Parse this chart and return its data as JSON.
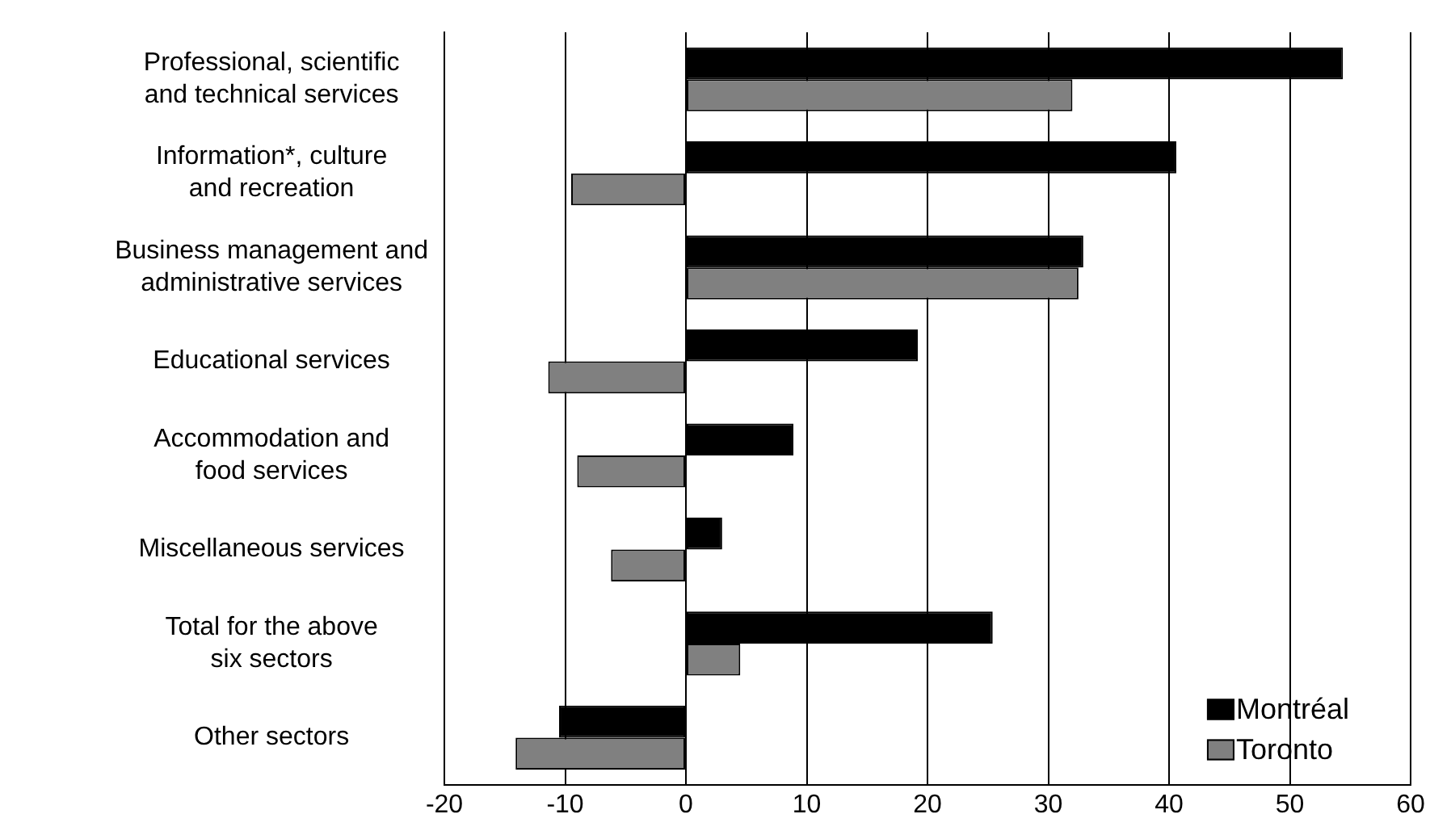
{
  "chart_data": {
    "type": "bar",
    "orientation": "horizontal",
    "categories": [
      "Professional, scientific\nand technical services",
      "Information*, culture\nand recreation",
      "Business management and\nadministrative services",
      "Educational services",
      "Accommodation and\nfood services",
      "Miscellaneous services",
      "Total for the above\nsix sectors",
      "Other sectors"
    ],
    "series": [
      {
        "name": "Montréal",
        "color": "#000000",
        "values": [
          54.4,
          40.6,
          32.9,
          19.2,
          8.9,
          3.0,
          25.4,
          -10.5
        ]
      },
      {
        "name": "Toronto",
        "color": "#808080",
        "values": [
          32.0,
          -9.5,
          32.5,
          -11.4,
          -9.0,
          -6.2,
          4.5,
          -14.1
        ]
      }
    ],
    "xlim": [
      -20,
      60
    ],
    "xticks": [
      -20,
      -10,
      0,
      10,
      20,
      30,
      40,
      50,
      60
    ],
    "grid": "x",
    "legend": "bottom right"
  }
}
